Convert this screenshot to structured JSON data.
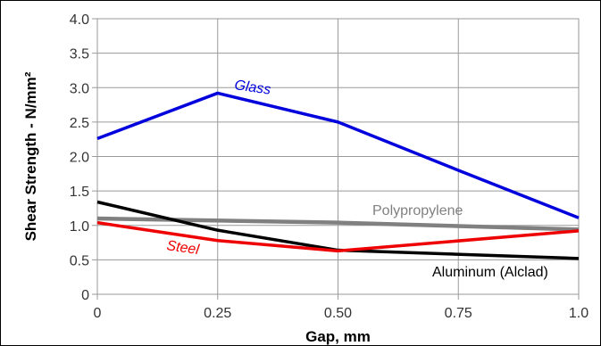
{
  "chart_data": {
    "type": "line",
    "xlabel": "Gap, mm",
    "ylabel": "Shear Strength - N/mm²",
    "x": [
      0,
      0.25,
      0.5,
      0.75,
      1.0
    ],
    "x_tick_labels": [
      "0",
      "0.25",
      "0.50",
      "0.75",
      "1.0"
    ],
    "y_tick_labels": [
      "0",
      "0.5",
      "1.0",
      "1.5",
      "2.0",
      "2.5",
      "3.0",
      "3.5",
      "4.0"
    ],
    "xlim": [
      0,
      1.0
    ],
    "ylim": [
      0,
      4.0
    ],
    "grid": true,
    "series": [
      {
        "name": "Glass",
        "color": "#0000dd",
        "x": [
          0,
          0.25,
          0.5,
          0.75,
          1.0
        ],
        "values": [
          2.26,
          2.92,
          2.5,
          1.8,
          1.11
        ]
      },
      {
        "name": "Polypropylene",
        "color": "#808080",
        "x": [
          0,
          0.5,
          1.0
        ],
        "values": [
          1.1,
          1.04,
          0.94
        ]
      },
      {
        "name": "Steel",
        "color": "#ee0000",
        "x": [
          0,
          0.25,
          0.5,
          1.0
        ],
        "values": [
          1.04,
          0.78,
          0.63,
          0.92
        ]
      },
      {
        "name": "Aluminum (Alclad)",
        "color": "#000000",
        "x": [
          0,
          0.25,
          0.5,
          1.0
        ],
        "values": [
          1.34,
          0.93,
          0.64,
          0.52
        ]
      }
    ]
  }
}
